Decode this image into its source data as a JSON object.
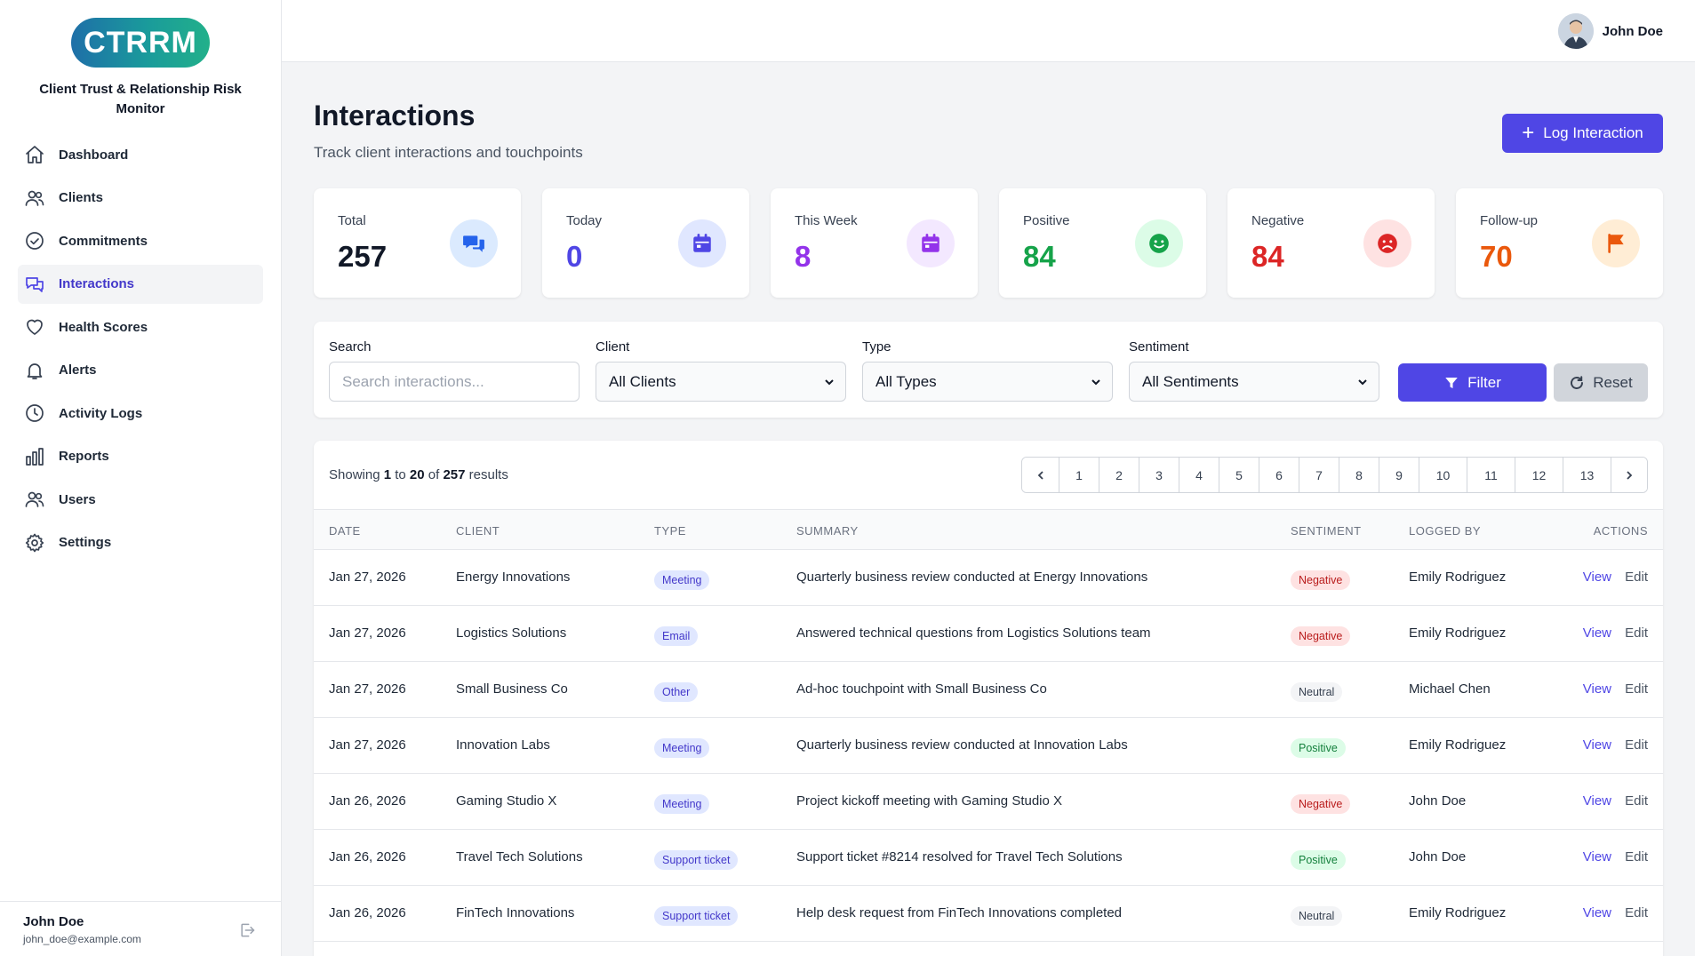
{
  "brand": {
    "logo_text": "CTRRM",
    "subtitle": "Client Trust & Relationship Risk Monitor"
  },
  "sidebar": {
    "items": [
      {
        "label": "Dashboard",
        "icon": "home-icon"
      },
      {
        "label": "Clients",
        "icon": "users-icon"
      },
      {
        "label": "Commitments",
        "icon": "check-circle-icon"
      },
      {
        "label": "Interactions",
        "icon": "chat-bubbles-icon",
        "active": true
      },
      {
        "label": "Health Scores",
        "icon": "heart-icon"
      },
      {
        "label": "Alerts",
        "icon": "bell-icon"
      },
      {
        "label": "Activity Logs",
        "icon": "clock-icon"
      },
      {
        "label": "Reports",
        "icon": "bar-chart-icon"
      },
      {
        "label": "Users",
        "icon": "users-icon"
      },
      {
        "label": "Settings",
        "icon": "gear-icon"
      }
    ],
    "user": {
      "name": "John Doe",
      "email": "john_doe@example.com"
    }
  },
  "topbar": {
    "user_name": "John Doe"
  },
  "page": {
    "title": "Interactions",
    "subtitle": "Track client interactions and touchpoints",
    "log_button": "Log Interaction"
  },
  "stats": [
    {
      "label": "Total",
      "value": "257",
      "color": "#111827",
      "icon": "chat-bubbles-icon",
      "icon_bg": "#dbeafe",
      "icon_color": "#2563eb"
    },
    {
      "label": "Today",
      "value": "0",
      "color": "#4f46e5",
      "icon": "calendar-icon",
      "icon_bg": "#e0e7ff",
      "icon_color": "#4f46e5"
    },
    {
      "label": "This Week",
      "value": "8",
      "color": "#9333ea",
      "icon": "calendar-icon",
      "icon_bg": "#f3e8ff",
      "icon_color": "#9333ea"
    },
    {
      "label": "Positive",
      "value": "84",
      "color": "#16a34a",
      "icon": "smile-icon",
      "icon_bg": "#dcfce7",
      "icon_color": "#16a34a"
    },
    {
      "label": "Negative",
      "value": "84",
      "color": "#dc2626",
      "icon": "frown-icon",
      "icon_bg": "#fee2e2",
      "icon_color": "#dc2626"
    },
    {
      "label": "Follow-up",
      "value": "70",
      "color": "#ea580c",
      "icon": "flag-icon",
      "icon_bg": "#ffedd5",
      "icon_color": "#ea580c"
    }
  ],
  "filters": {
    "search_label": "Search",
    "search_placeholder": "Search interactions...",
    "client_label": "Client",
    "client_value": "All Clients",
    "type_label": "Type",
    "type_value": "All Types",
    "sentiment_label": "Sentiment",
    "sentiment_value": "All Sentiments",
    "filter_button": "Filter",
    "reset_button": "Reset"
  },
  "table": {
    "showing_prefix": "Showing",
    "showing_from": "1",
    "showing_to_word": "to",
    "showing_to": "20",
    "showing_of_word": "of",
    "showing_total": "257",
    "showing_suffix": "results",
    "pages": [
      "1",
      "2",
      "3",
      "4",
      "5",
      "6",
      "7",
      "8",
      "9",
      "10",
      "11",
      "12",
      "13"
    ],
    "headers": {
      "date": "DATE",
      "client": "CLIENT",
      "type": "TYPE",
      "summary": "SUMMARY",
      "sentiment": "SENTIMENT",
      "logged_by": "LOGGED BY",
      "actions": "ACTIONS"
    },
    "view_label": "View",
    "edit_label": "Edit",
    "rows": [
      {
        "date": "Jan 27, 2026",
        "client": "Energy Innovations",
        "type": "Meeting",
        "summary": "Quarterly business review conducted at Energy Innovations",
        "sentiment": "Negative",
        "logged_by": "Emily Rodriguez"
      },
      {
        "date": "Jan 27, 2026",
        "client": "Logistics Solutions",
        "type": "Email",
        "summary": "Answered technical questions from Logistics Solutions team",
        "sentiment": "Negative",
        "logged_by": "Emily Rodriguez"
      },
      {
        "date": "Jan 27, 2026",
        "client": "Small Business Co",
        "type": "Other",
        "summary": "Ad-hoc touchpoint with Small Business Co",
        "sentiment": "Neutral",
        "logged_by": "Michael Chen"
      },
      {
        "date": "Jan 27, 2026",
        "client": "Innovation Labs",
        "type": "Meeting",
        "summary": "Quarterly business review conducted at Innovation Labs",
        "sentiment": "Positive",
        "logged_by": "Emily Rodriguez"
      },
      {
        "date": "Jan 26, 2026",
        "client": "Gaming Studio X",
        "type": "Meeting",
        "summary": "Project kickoff meeting with Gaming Studio X",
        "sentiment": "Negative",
        "logged_by": "John Doe"
      },
      {
        "date": "Jan 26, 2026",
        "client": "Travel Tech Solutions",
        "type": "Support ticket",
        "summary": "Support ticket #8214 resolved for Travel Tech Solutions",
        "sentiment": "Positive",
        "logged_by": "John Doe"
      },
      {
        "date": "Jan 26, 2026",
        "client": "FinTech Innovations",
        "type": "Support ticket",
        "summary": "Help desk request from FinTech Innovations completed",
        "sentiment": "Neutral",
        "logged_by": "Emily Rodriguez"
      }
    ]
  }
}
